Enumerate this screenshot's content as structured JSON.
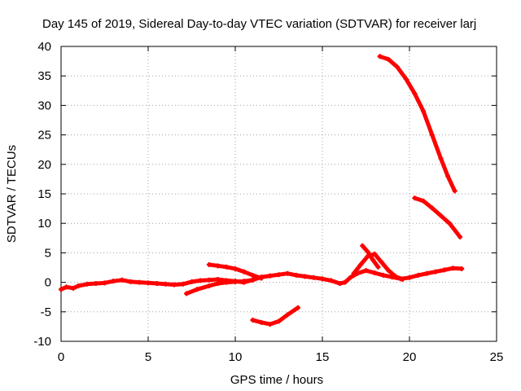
{
  "chart_data": {
    "type": "scatter",
    "title": "Day 145 of 2019, Sidereal Day-to-day VTEC variation (SDTVAR) for receiver larj",
    "xlabel": "GPS time / hours",
    "ylabel": "SDTVAR / TECUs",
    "xlim": [
      0,
      25
    ],
    "ylim": [
      -10,
      40
    ],
    "xticks": [
      0,
      5,
      10,
      15,
      20,
      25
    ],
    "yticks": [
      -10,
      -5,
      0,
      5,
      10,
      15,
      20,
      25,
      30,
      35,
      40
    ],
    "grid": true,
    "color": "#ff0000",
    "series": [
      {
        "name": "main-baseline",
        "points": [
          [
            0,
            -1.2
          ],
          [
            0.3,
            -0.8
          ],
          [
            0.7,
            -1.0
          ],
          [
            1.0,
            -0.6
          ],
          [
            1.5,
            -0.3
          ],
          [
            2.0,
            -0.2
          ],
          [
            2.5,
            -0.1
          ],
          [
            3.0,
            0.2
          ],
          [
            3.5,
            0.4
          ],
          [
            4.0,
            0.1
          ],
          [
            4.5,
            0.0
          ],
          [
            5.0,
            -0.1
          ],
          [
            5.5,
            -0.2
          ],
          [
            6.0,
            -0.3
          ],
          [
            6.5,
            -0.4
          ],
          [
            7.0,
            -0.3
          ],
          [
            7.5,
            0.1
          ],
          [
            8.0,
            0.3
          ],
          [
            8.5,
            0.4
          ],
          [
            9.0,
            0.5
          ],
          [
            9.5,
            0.3
          ],
          [
            10.0,
            0.2
          ],
          [
            10.5,
            0.0
          ],
          [
            11.0,
            0.4
          ],
          [
            11.5,
            0.9
          ],
          [
            12.0,
            1.1
          ],
          [
            12.5,
            1.3
          ],
          [
            13.0,
            1.5
          ],
          [
            13.5,
            1.2
          ],
          [
            14.0,
            1.0
          ],
          [
            14.5,
            0.8
          ],
          [
            15.0,
            0.6
          ],
          [
            15.5,
            0.3
          ],
          [
            16.0,
            -0.2
          ],
          [
            16.3,
            0.0
          ],
          [
            16.6,
            0.8
          ],
          [
            17.0,
            1.5
          ],
          [
            17.5,
            2.0
          ],
          [
            18.0,
            1.6
          ],
          [
            18.5,
            1.2
          ],
          [
            19.0,
            0.9
          ],
          [
            19.5,
            0.6
          ],
          [
            20.0,
            0.8
          ],
          [
            20.5,
            1.2
          ],
          [
            21.0,
            1.5
          ],
          [
            21.5,
            1.8
          ],
          [
            22.0,
            2.1
          ],
          [
            22.5,
            2.4
          ],
          [
            23.0,
            2.3
          ]
        ]
      },
      {
        "name": "lower-baseline",
        "points": [
          [
            7.2,
            -1.9
          ],
          [
            7.8,
            -1.2
          ],
          [
            8.5,
            -0.6
          ],
          [
            9.0,
            -0.2
          ],
          [
            9.5,
            0.0
          ],
          [
            10.0,
            0.1
          ],
          [
            10.5,
            0.2
          ],
          [
            11.0,
            0.4
          ]
        ]
      },
      {
        "name": "upper-arc",
        "points": [
          [
            8.5,
            3.0
          ],
          [
            9.0,
            2.8
          ],
          [
            9.5,
            2.6
          ],
          [
            10.0,
            2.3
          ],
          [
            10.5,
            1.8
          ],
          [
            11.0,
            1.2
          ],
          [
            11.5,
            0.7
          ]
        ]
      },
      {
        "name": "negative-arc",
        "points": [
          [
            11.0,
            -6.4
          ],
          [
            11.5,
            -6.8
          ],
          [
            12.0,
            -7.1
          ],
          [
            12.5,
            -6.6
          ],
          [
            13.0,
            -5.5
          ],
          [
            13.6,
            -4.3
          ]
        ]
      },
      {
        "name": "spike",
        "points": [
          [
            16.8,
            1.5
          ],
          [
            17.2,
            3.0
          ],
          [
            17.6,
            4.4
          ],
          [
            18.0,
            4.8
          ],
          [
            18.4,
            3.4
          ],
          [
            18.8,
            2.0
          ],
          [
            19.2,
            1.0
          ],
          [
            19.6,
            0.5
          ]
        ]
      },
      {
        "name": "spike-lower",
        "points": [
          [
            17.3,
            6.2
          ],
          [
            17.6,
            5.2
          ],
          [
            17.9,
            3.8
          ],
          [
            18.2,
            2.6
          ]
        ]
      },
      {
        "name": "high-decay",
        "points": [
          [
            18.3,
            38.3
          ],
          [
            18.8,
            37.8
          ],
          [
            19.3,
            36.5
          ],
          [
            19.8,
            34.5
          ],
          [
            20.3,
            32.0
          ],
          [
            20.8,
            29.0
          ],
          [
            21.3,
            25.0
          ],
          [
            21.8,
            21.0
          ],
          [
            22.2,
            18.0
          ],
          [
            22.6,
            15.5
          ]
        ]
      },
      {
        "name": "mid-decay",
        "points": [
          [
            20.3,
            14.3
          ],
          [
            20.8,
            13.8
          ],
          [
            21.3,
            12.6
          ],
          [
            21.8,
            11.3
          ],
          [
            22.3,
            10.0
          ],
          [
            22.9,
            7.7
          ]
        ]
      }
    ]
  }
}
